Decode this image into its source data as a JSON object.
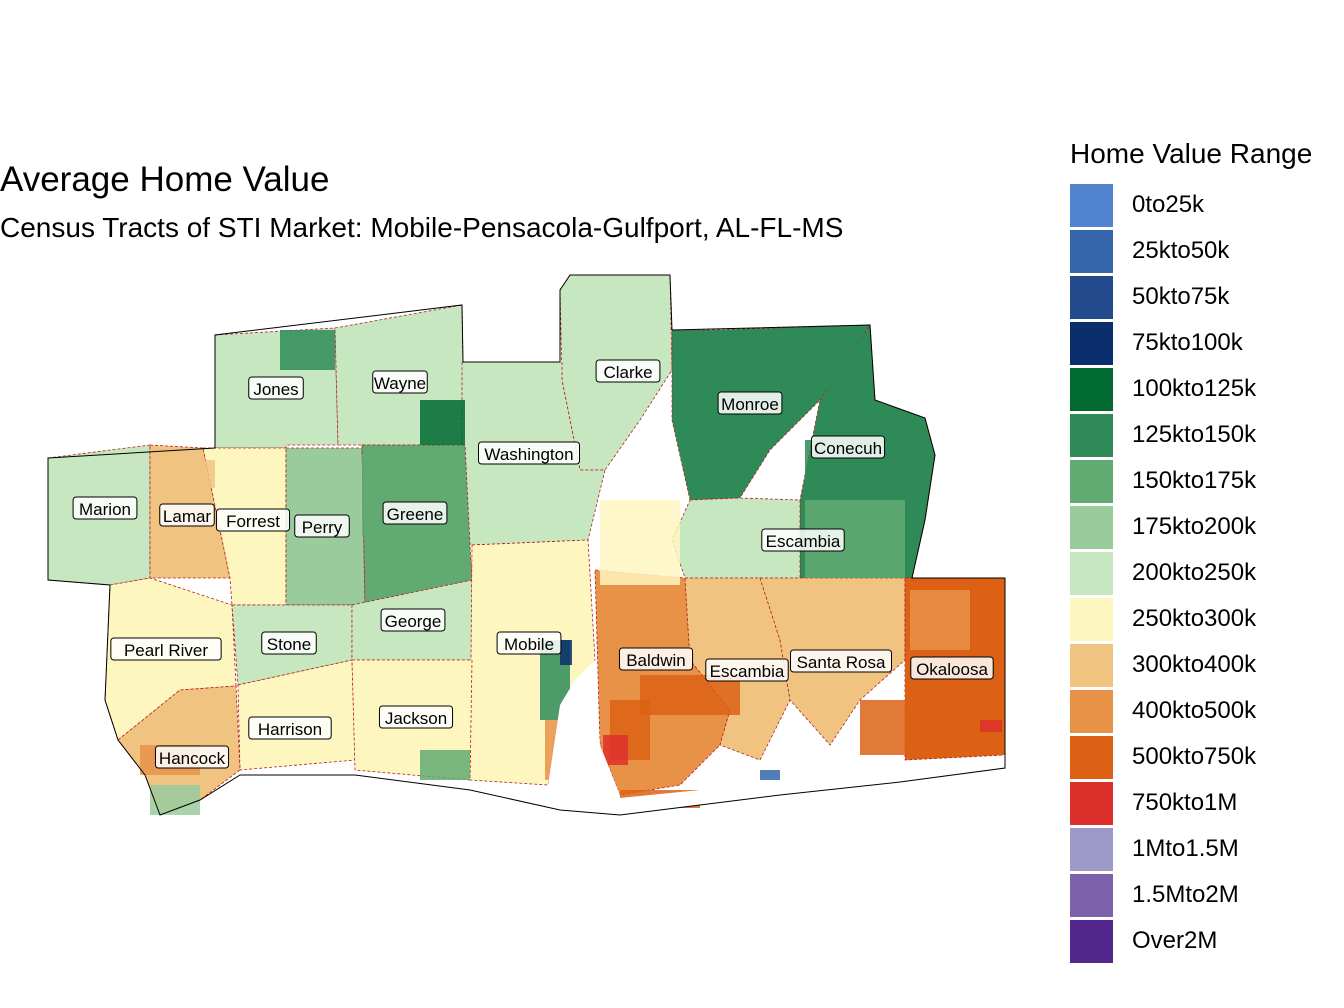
{
  "title": "Average Home Value",
  "subtitle": "Census Tracts of STI Market: Mobile-Pensacola-Gulfport, AL-FL-MS",
  "legend": {
    "title": "Home Value Range",
    "items": [
      {
        "label": "0to25k",
        "color": "#5283cf"
      },
      {
        "label": "25kto50k",
        "color": "#3566ab"
      },
      {
        "label": "50kto75k",
        "color": "#224a8c"
      },
      {
        "label": "75kto100k",
        "color": "#0b2f6c"
      },
      {
        "label": "100kto125k",
        "color": "#006a31"
      },
      {
        "label": "125kto150k",
        "color": "#2e8b57"
      },
      {
        "label": "150kto175k",
        "color": "#61aa72"
      },
      {
        "label": "175kto200k",
        "color": "#99cb9d"
      },
      {
        "label": "200kto250k",
        "color": "#c7e7c0"
      },
      {
        "label": "250kto300k",
        "color": "#fef6bf"
      },
      {
        "label": "300kto400k",
        "color": "#f1c380"
      },
      {
        "label": "400kto500k",
        "color": "#e89248"
      },
      {
        "label": "500kto750k",
        "color": "#dc6115"
      },
      {
        "label": "750kto1M",
        "color": "#dd302c"
      },
      {
        "label": "1Mto1.5M",
        "color": "#9e9ac8"
      },
      {
        "label": "1.5Mto2M",
        "color": "#7b62ab"
      },
      {
        "label": "Over2M",
        "color": "#54278f"
      }
    ]
  },
  "counties": [
    {
      "name": "Jones",
      "value_range": "200kto250k"
    },
    {
      "name": "Wayne",
      "value_range": "200kto250k"
    },
    {
      "name": "Clarke",
      "value_range": "200kto250k"
    },
    {
      "name": "Monroe",
      "value_range": "125kto150k"
    },
    {
      "name": "Washington",
      "value_range": "200kto250k"
    },
    {
      "name": "Conecuh",
      "value_range": "125kto150k"
    },
    {
      "name": "Marion",
      "value_range": "200kto250k"
    },
    {
      "name": "Lamar",
      "value_range": "300kto400k"
    },
    {
      "name": "Forrest",
      "value_range": "250kto300k"
    },
    {
      "name": "Perry",
      "value_range": "175kto200k"
    },
    {
      "name": "Greene",
      "value_range": "150kto175k"
    },
    {
      "name": "Escambia",
      "value_range": "200kto250k"
    },
    {
      "name": "Pearl River",
      "value_range": "250kto300k"
    },
    {
      "name": "Stone",
      "value_range": "200kto250k"
    },
    {
      "name": "George",
      "value_range": "200kto250k"
    },
    {
      "name": "Mobile",
      "value_range": "250kto300k"
    },
    {
      "name": "Baldwin",
      "value_range": "400kto500k"
    },
    {
      "name": "Escambia",
      "value_range": "300kto400k"
    },
    {
      "name": "Santa Rosa",
      "value_range": "300kto400k"
    },
    {
      "name": "Okaloosa",
      "value_range": "500kto750k"
    },
    {
      "name": "Harrison",
      "value_range": "250kto300k"
    },
    {
      "name": "Jackson",
      "value_range": "250kto300k"
    },
    {
      "name": "Hancock",
      "value_range": "300kto400k"
    }
  ]
}
